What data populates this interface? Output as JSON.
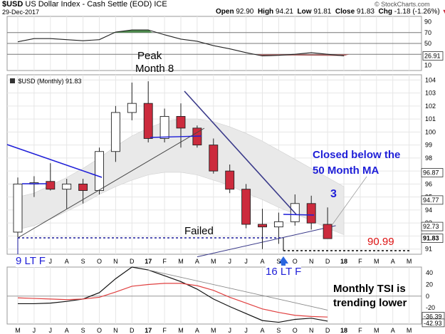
{
  "header": {
    "symbol": "$USD",
    "name": "US Dollar Index - Cash Settle (EOD)",
    "exchange": "ICE",
    "date": "29-Dec-2017",
    "open_label": "Open",
    "open": "92.90",
    "high_label": "High",
    "high": "94.21",
    "low_label": "Low",
    "low": "91.81",
    "close_label": "Close",
    "close": "91.83",
    "chg_label": "Chg",
    "chg": "-1.18 (-1.26%)",
    "down_arrow": "▼",
    "credit": "© StockCharts.com"
  },
  "colors": {
    "up_body": "#ffffff",
    "down_body": "#cc2b3d",
    "band": "#e9e9e9",
    "rsi_green": "#4c8a4c",
    "rsi_red": "#a86060",
    "annotation_blue": "#1f1fd8",
    "trend_navy": "#3a3a8a",
    "tsi_red": "#e04040",
    "target_red": "#dd1111"
  },
  "x_labels": [
    "M",
    "J",
    "J",
    "A",
    "S",
    "O",
    "N",
    "D",
    "17",
    "F",
    "M",
    "A",
    "M",
    "J",
    "J",
    "A",
    "S",
    "O",
    "N",
    "D",
    "18",
    "F",
    "M",
    "A",
    "M"
  ],
  "chart_data": [
    {
      "name": "rsi",
      "type": "line",
      "y_ticks": [
        "90",
        "70",
        "50",
        "30",
        "10"
      ],
      "ylim": [
        0,
        100
      ],
      "current_value": "26.91",
      "reference_lines": [
        70,
        50,
        30
      ],
      "values": [
        53,
        59,
        59,
        57,
        55,
        57,
        71,
        75,
        75,
        66,
        58,
        54,
        46,
        40,
        33,
        27,
        28,
        30,
        33,
        30,
        27
      ]
    },
    {
      "name": "price",
      "type": "candlestick",
      "legend": "$USD (Monthly) 91.83",
      "y_ticks": [
        "104",
        "103",
        "102",
        "101",
        "100",
        "99",
        "98",
        "97",
        "96",
        "95",
        "94",
        "93",
        "92",
        "91"
      ],
      "ylim": [
        90.6,
        104.4
      ],
      "value_tags": [
        "96.87",
        "94.77",
        "92.73",
        "91.83"
      ],
      "candles": [
        {
          "month": "M",
          "o": 92.3,
          "h": 96.5,
          "l": 91.9,
          "c": 96.0
        },
        {
          "month": "J",
          "o": 96.0,
          "h": 96.6,
          "l": 95.0,
          "c": 96.1
        },
        {
          "month": "J",
          "o": 96.2,
          "h": 97.6,
          "l": 95.5,
          "c": 95.6
        },
        {
          "month": "A",
          "o": 95.6,
          "h": 96.4,
          "l": 94.1,
          "c": 96.0
        },
        {
          "month": "S",
          "o": 96.0,
          "h": 96.4,
          "l": 94.5,
          "c": 95.5
        },
        {
          "month": "O",
          "o": 95.5,
          "h": 98.8,
          "l": 95.2,
          "c": 98.5
        },
        {
          "month": "N",
          "o": 98.5,
          "h": 102.0,
          "l": 97.7,
          "c": 101.5
        },
        {
          "month": "D",
          "o": 101.5,
          "h": 103.8,
          "l": 100.9,
          "c": 102.2
        },
        {
          "month": "17",
          "o": 102.2,
          "h": 103.9,
          "l": 99.2,
          "c": 99.5
        },
        {
          "month": "F",
          "o": 99.5,
          "h": 101.8,
          "l": 99.2,
          "c": 101.2
        },
        {
          "month": "M",
          "o": 101.2,
          "h": 102.2,
          "l": 98.8,
          "c": 100.3
        },
        {
          "month": "A",
          "o": 100.3,
          "h": 100.5,
          "l": 98.8,
          "c": 99.0
        },
        {
          "month": "M",
          "o": 99.0,
          "h": 99.5,
          "l": 96.8,
          "c": 97.0
        },
        {
          "month": "J",
          "o": 97.0,
          "h": 97.5,
          "l": 95.3,
          "c": 95.6
        },
        {
          "month": "J",
          "o": 95.6,
          "h": 96.0,
          "l": 92.6,
          "c": 92.9
        },
        {
          "month": "A",
          "o": 92.9,
          "h": 94.1,
          "l": 91.0,
          "c": 92.7
        },
        {
          "month": "S",
          "o": 92.7,
          "h": 93.8,
          "l": 91.4,
          "c": 93.1
        },
        {
          "month": "O",
          "o": 93.1,
          "h": 95.2,
          "l": 92.8,
          "c": 94.5
        },
        {
          "month": "N",
          "o": 94.5,
          "h": 95.1,
          "l": 92.5,
          "c": 93.0
        },
        {
          "month": "D",
          "o": 92.9,
          "h": 94.2,
          "l": 91.8,
          "c": 91.8
        }
      ],
      "ma_band_upper": [
        95.0,
        95.3,
        95.9,
        96.5,
        97.2,
        98.0,
        98.9,
        99.7,
        100.3,
        100.8,
        101.0,
        101.0,
        100.8,
        100.4,
        99.9,
        99.3,
        98.6,
        97.9,
        97.2,
        96.5,
        95.8
      ],
      "ma_band_lower": [
        92.5,
        92.8,
        93.3,
        93.9,
        94.5,
        95.2,
        95.8,
        96.3,
        96.7,
        96.9,
        96.9,
        96.7,
        96.3,
        95.9,
        95.3,
        94.8,
        94.2,
        93.7,
        93.2,
        92.6,
        92.1
      ],
      "ma_line": [
        90.4,
        92.8
      ],
      "annotations": {
        "peak_line1": "Peak",
        "peak_line2": "Month 8",
        "closed_line1": "Closed below the",
        "closed_line2": "50 Month MA",
        "count_3": "3",
        "failed": "Failed",
        "lt_9": "9 LT F",
        "lt_16": "16 LT F",
        "target": "90.99"
      }
    },
    {
      "name": "tsi",
      "type": "line",
      "y_ticks": [
        "40",
        "20",
        "0",
        "-20",
        "-40"
      ],
      "ylim": [
        -48,
        50
      ],
      "value_tags": [
        "-36.39",
        "-42.93"
      ],
      "series": [
        {
          "color": "black",
          "values": [
            -13,
            -13,
            -12,
            -9,
            -5,
            6,
            30,
            50,
            45,
            35,
            25,
            12,
            -5,
            -18,
            -30,
            -42,
            -45,
            -40,
            -38,
            -43
          ]
        },
        {
          "color": "red",
          "values": [
            -3,
            -4,
            -5,
            -6,
            -5,
            -2,
            7,
            17,
            20,
            22,
            22,
            18,
            10,
            -2,
            -12,
            -22,
            -28,
            -33,
            -35,
            -36
          ]
        }
      ],
      "annotation_line1": "Monthly TSI is",
      "annotation_line2": "trending lower"
    }
  ]
}
